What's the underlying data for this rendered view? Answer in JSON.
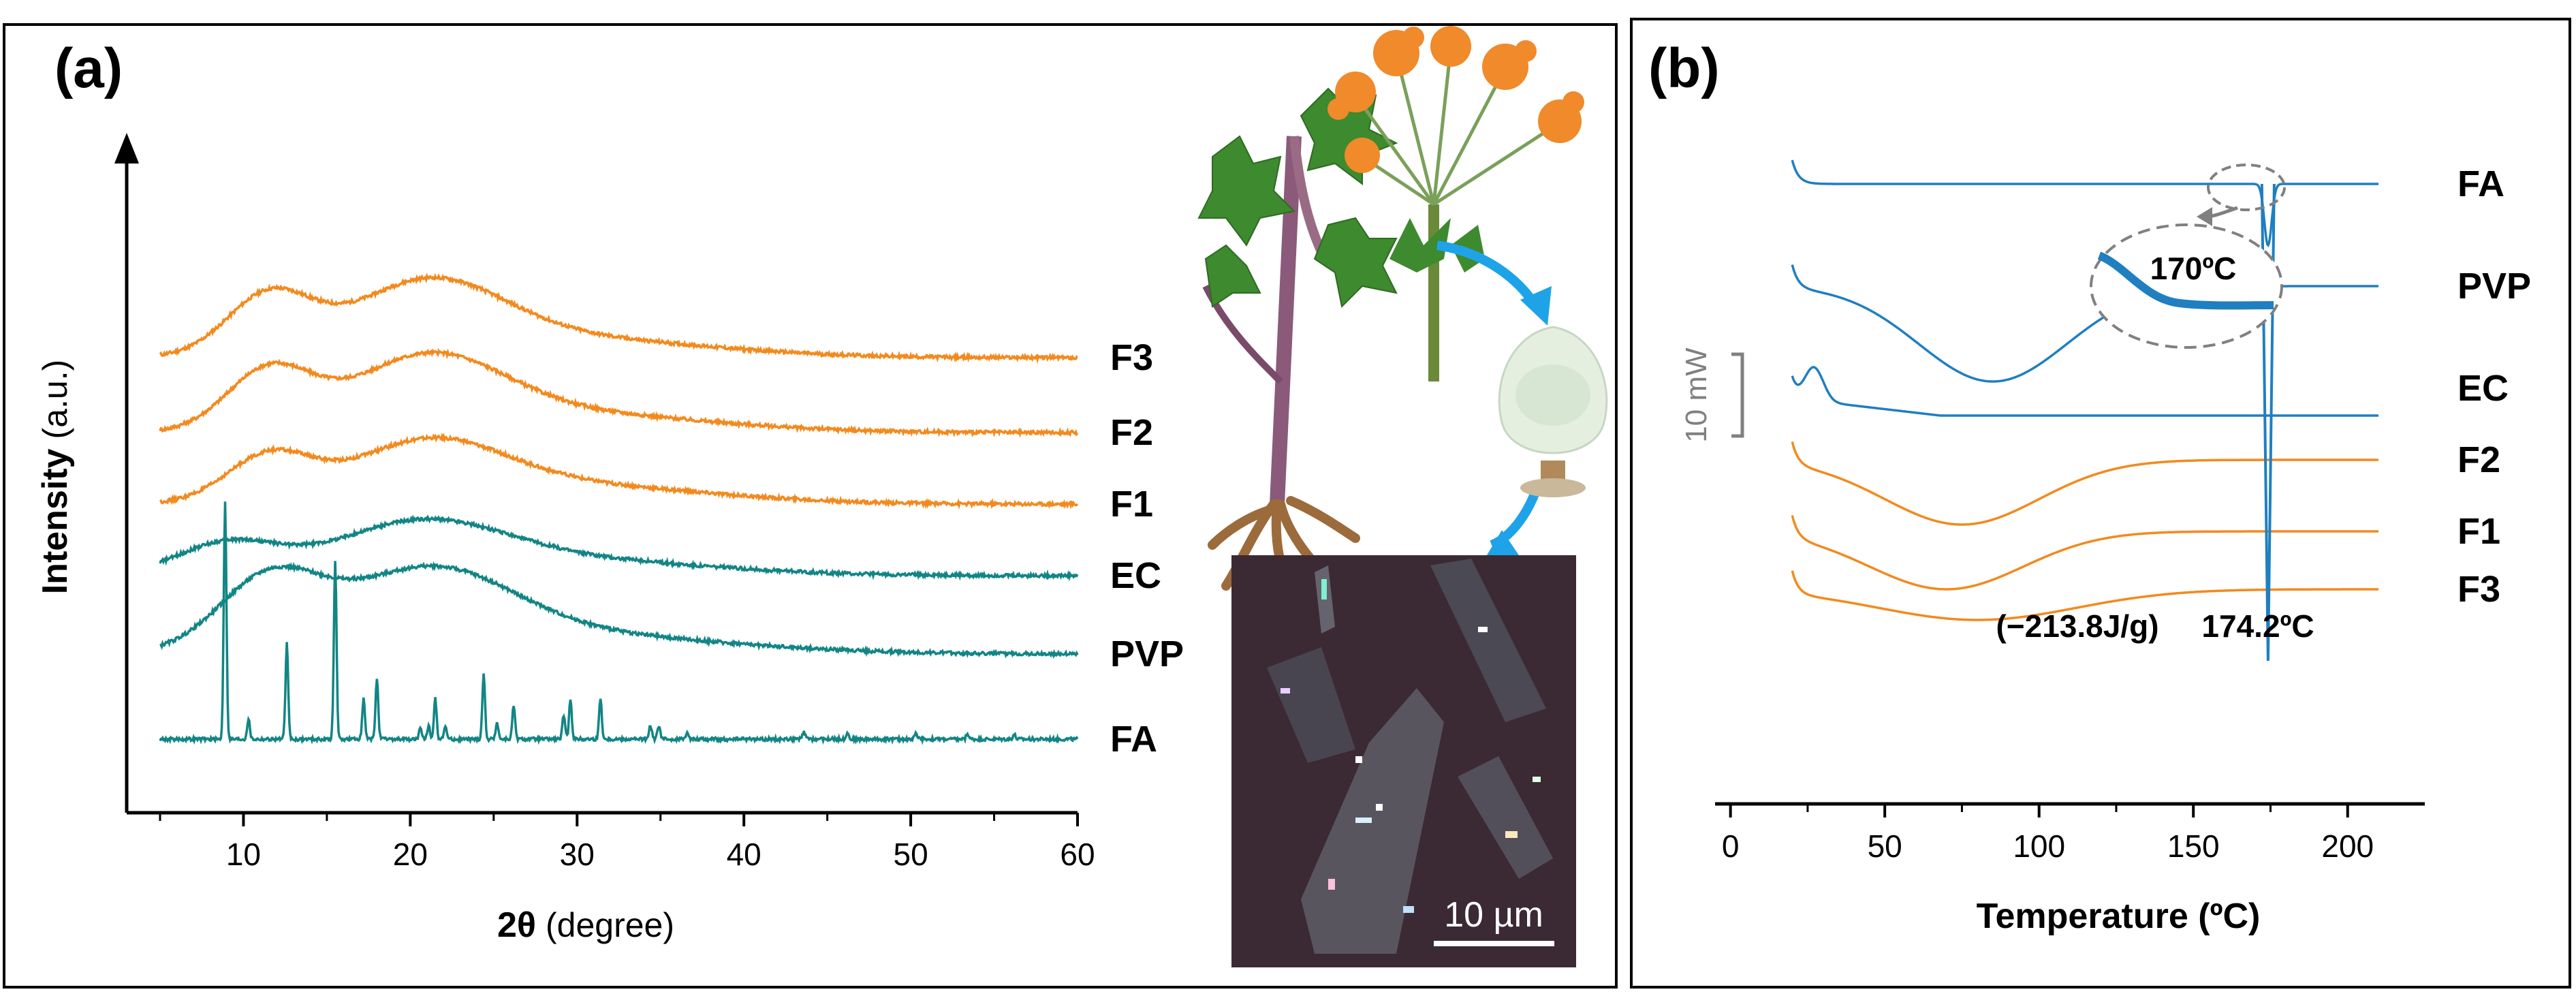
{
  "figure": {
    "colors": {
      "orange": "#F28A1E",
      "teal": "#128585",
      "blue": "#1F7FC0",
      "arrow_blue": "#1FA3E8",
      "gray": "#808080"
    }
  },
  "panels": {
    "a": {
      "label": "(a)",
      "inset_scale_bar": "10 µm",
      "icons": [
        "plant-illustration-icon",
        "powder-flask-icon",
        "microscope-image-icon",
        "curved-arrow-icon"
      ]
    },
    "b": {
      "label": "(b)",
      "inset_label": "170ºC",
      "enthalpy_label": "(−213.8J/g)",
      "peak_label": "174.2ºC",
      "scale_label": "10 mW"
    }
  },
  "chart_data": [
    {
      "type": "line",
      "title": "",
      "xlabel_bold": "2θ",
      "xlabel_rest": "(degree)",
      "ylabel_bold": "Intensity",
      "ylabel_rest": "(a.u.)",
      "xlim": [
        3,
        60
      ],
      "xticks": [
        "10",
        "20",
        "30",
        "40",
        "50",
        "60"
      ],
      "y_ticks_shown": false,
      "description": "XRD patterns, vertically offset, relative intensity",
      "series": [
        {
          "name": "F3",
          "color": "orange",
          "baseline": 5.6,
          "halos": [
            {
              "x": 11.5,
              "h": 0.85,
              "w": 2.5
            },
            {
              "x": 21,
              "h": 0.95,
              "w": 4.5
            },
            {
              "x": 28,
              "h": 0.3,
              "w": 9
            }
          ]
        },
        {
          "name": "F2",
          "color": "orange",
          "baseline": 4.5,
          "halos": [
            {
              "x": 11.5,
              "h": 0.85,
              "w": 2.5
            },
            {
              "x": 21,
              "h": 0.95,
              "w": 4.5
            },
            {
              "x": 28,
              "h": 0.3,
              "w": 9
            }
          ]
        },
        {
          "name": "F1",
          "color": "orange",
          "baseline": 3.45,
          "halos": [
            {
              "x": 11.5,
              "h": 0.65,
              "w": 2.5
            },
            {
              "x": 21,
              "h": 0.75,
              "w": 4.5
            },
            {
              "x": 28,
              "h": 0.3,
              "w": 9
            }
          ]
        },
        {
          "name": "EC",
          "color": "teal",
          "baseline": 2.4,
          "halos": [
            {
              "x": 9,
              "h": 0.45,
              "w": 3
            },
            {
              "x": 20.5,
              "h": 0.65,
              "w": 5
            },
            {
              "x": 28,
              "h": 0.25,
              "w": 9
            }
          ]
        },
        {
          "name": "PVP",
          "color": "teal",
          "baseline": 1.25,
          "halos": [
            {
              "x": 11.5,
              "h": 1.0,
              "w": 3
            },
            {
              "x": 21,
              "h": 1.05,
              "w": 5
            },
            {
              "x": 28,
              "h": 0.3,
              "w": 10
            }
          ]
        },
        {
          "name": "FA",
          "color": "teal",
          "baseline": 0,
          "peaks": [
            {
              "x": 8.9,
              "h": 3.5
            },
            {
              "x": 10.3,
              "h": 0.3
            },
            {
              "x": 12.6,
              "h": 1.4
            },
            {
              "x": 15.5,
              "h": 2.6
            },
            {
              "x": 17.2,
              "h": 0.6
            },
            {
              "x": 18.0,
              "h": 0.9
            },
            {
              "x": 20.6,
              "h": 0.15
            },
            {
              "x": 21.1,
              "h": 0.2
            },
            {
              "x": 21.5,
              "h": 0.6
            },
            {
              "x": 22.1,
              "h": 0.2
            },
            {
              "x": 24.4,
              "h": 0.95
            },
            {
              "x": 25.2,
              "h": 0.25
            },
            {
              "x": 26.2,
              "h": 0.5
            },
            {
              "x": 29.2,
              "h": 0.35
            },
            {
              "x": 29.6,
              "h": 0.6
            },
            {
              "x": 31.4,
              "h": 0.6
            },
            {
              "x": 34.4,
              "h": 0.2
            },
            {
              "x": 34.9,
              "h": 0.2
            },
            {
              "x": 36.6,
              "h": 0.12
            },
            {
              "x": 43.6,
              "h": 0.1
            },
            {
              "x": 46.2,
              "h": 0.1
            },
            {
              "x": 50.3,
              "h": 0.08
            },
            {
              "x": 53.4,
              "h": 0.08
            },
            {
              "x": 56.2,
              "h": 0.07
            }
          ]
        }
      ]
    },
    {
      "type": "line",
      "title": "",
      "xlabel": "Temperature (ºC)",
      "xlim": [
        -5,
        225
      ],
      "xticks": [
        "0",
        "50",
        "100",
        "150",
        "200"
      ],
      "y_ticks_shown": false,
      "description": "DSC thermograms, vertically offset",
      "series": [
        {
          "name": "FA",
          "color": "blue",
          "x_end": 210,
          "baseline": 10.6,
          "peak": {
            "x": 174.2,
            "depth": 0.9
          }
        },
        {
          "name": "PVP",
          "color": "blue",
          "x_end": 210,
          "baseline": 9.1,
          "broad_dip": {
            "x": 85,
            "depth": 1.4,
            "w": 24
          }
        },
        {
          "name": "EC",
          "color": "blue",
          "x_end": 210,
          "baseline": 7.6,
          "bump": {
            "x": 27,
            "h": 0.5
          }
        },
        {
          "name": "F2",
          "color": "orange",
          "x_end": 210,
          "baseline": 6.55,
          "broad_dip": {
            "x": 75,
            "depth": 0.95,
            "w": 25
          }
        },
        {
          "name": "F1",
          "color": "orange",
          "x_end": 210,
          "baseline": 5.5,
          "broad_dip": {
            "x": 70,
            "depth": 0.85,
            "w": 25
          }
        },
        {
          "name": "F3",
          "color": "orange",
          "x_end": 210,
          "baseline": 4.65,
          "broad_dip": {
            "x": 80,
            "depth": 0.45,
            "w": 32
          }
        }
      ]
    }
  ]
}
